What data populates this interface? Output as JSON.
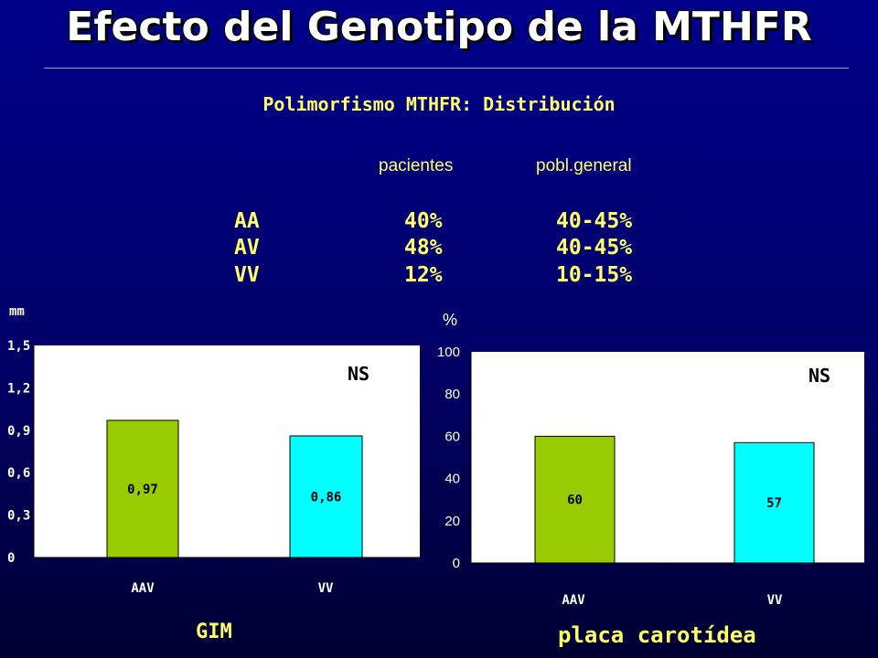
{
  "slide": {
    "title": "Efecto del Genotipo de la MTHFR",
    "subtitle": "Polimorfismo MTHFR: Distribución",
    "distribution": {
      "col_patients": "pacientes",
      "col_general": "pobl.general",
      "rows": [
        {
          "genotype": "AA",
          "patients": "40%",
          "general": "40-45%"
        },
        {
          "genotype": "AV",
          "patients": "48%",
          "general": "40-45%"
        },
        {
          "genotype": "VV",
          "patients": "12%",
          "general": "10-15%"
        }
      ]
    },
    "colors": {
      "title": "#ffffff",
      "text": "#ffff66",
      "bar_aav": "#99cc00",
      "bar_vv": "#00ffff",
      "plot_bg": "#ffffff"
    }
  },
  "chart_data": [
    {
      "type": "bar",
      "unit": "mm",
      "caption": "GIM",
      "annotation": "NS",
      "categories": [
        "AAV",
        "VV"
      ],
      "values": [
        0.97,
        0.86
      ],
      "value_labels": [
        "0,97",
        "0,86"
      ],
      "ticks": [
        0,
        0.3,
        0.6,
        0.9,
        1.2,
        1.5
      ],
      "tick_labels": [
        "0",
        "0,3",
        "0,6",
        "0,9",
        "1,2",
        "1,5"
      ],
      "ylim": [
        0,
        1.5
      ],
      "grid": false,
      "legend": "none"
    },
    {
      "type": "bar",
      "unit": "%",
      "caption": "placa carotídea",
      "annotation": "NS",
      "categories": [
        "AAV",
        "VV"
      ],
      "values": [
        60,
        57
      ],
      "value_labels": [
        "60",
        "57"
      ],
      "ticks": [
        0,
        20,
        40,
        60,
        80,
        100
      ],
      "tick_labels": [
        "0",
        "20",
        "40",
        "60",
        "80",
        "100"
      ],
      "ylim": [
        0,
        100
      ],
      "grid": false,
      "legend": "none"
    }
  ]
}
